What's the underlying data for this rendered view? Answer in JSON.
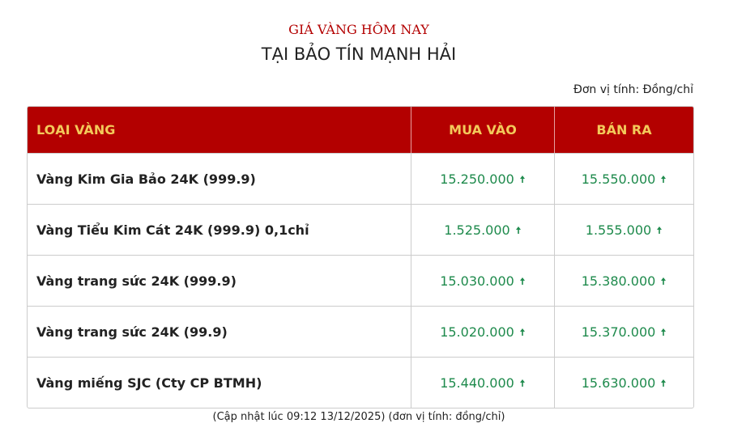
{
  "header": {
    "title": "GIÁ VÀNG HÔM NAY",
    "subtitle": "TẠI BẢO TÍN MẠNH HẢI",
    "unit": "Đơn vị tính: Đồng/chỉ"
  },
  "table": {
    "columns": [
      "LOẠI VÀNG",
      "MUA VÀO",
      "BÁN RA"
    ],
    "rows": [
      [
        "Vàng Kim Gia Bảo 24K (999.9)",
        "15.250.000",
        "15.550.000"
      ],
      [
        "Vàng Tiểu Kim Cát 24K (999.9) 0,1chỉ",
        "1.525.000",
        "1.555.000"
      ],
      [
        "Vàng trang sức 24K (999.9)",
        "15.030.000",
        "15.380.000"
      ],
      [
        "Vàng trang sức 24K (99.9)",
        "15.020.000",
        "15.370.000"
      ],
      [
        "Vàng miếng SJC (Cty CP BTMH)",
        "15.440.000",
        "15.630.000"
      ]
    ]
  },
  "footer": {
    "note": "(Cập nhật lúc 09:12 13/12/2025) (đơn vị tính: đồng/chỉ)"
  }
}
